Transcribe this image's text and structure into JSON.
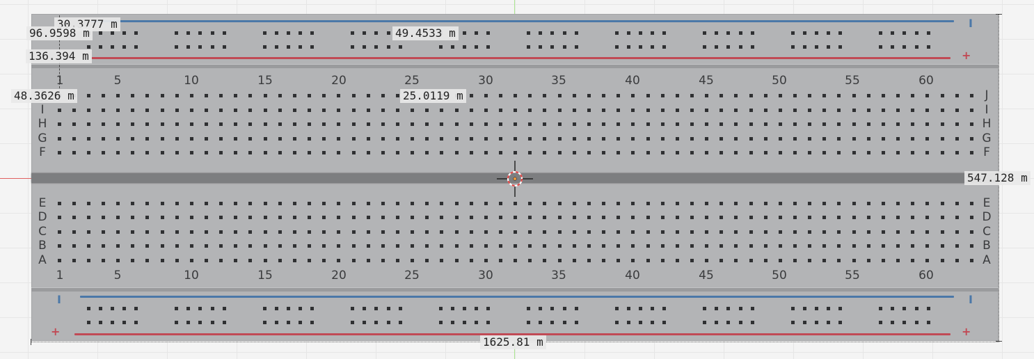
{
  "columns": {
    "top_labels": [
      "1",
      "5",
      "10",
      "15",
      "20",
      "25",
      "30",
      "35",
      "40",
      "45",
      "50",
      "55",
      "60"
    ],
    "bottom_labels": [
      "1",
      "5",
      "10",
      "15",
      "20",
      "25",
      "30",
      "35",
      "40",
      "45",
      "50",
      "55",
      "60"
    ]
  },
  "rows": {
    "upper": [
      "J",
      "I",
      "H",
      "G",
      "F"
    ],
    "lower": [
      "E",
      "D",
      "C",
      "B",
      "A"
    ]
  },
  "rails": {
    "top_minus": "I",
    "top_plus": "+",
    "bottom_minus": "I",
    "bottom_plus": "+"
  },
  "dimensions": {
    "d1": "30.3777 m",
    "d2": "96.9598 m",
    "d3": "49.4533 m",
    "d4": "136.394 m",
    "d5": "48.3626 m",
    "d6": "25.0119 m",
    "d7": "547.128 m",
    "d8": "1625.81 m"
  },
  "colors": {
    "board": "#b3b4b6",
    "rail_blue": "#4b78a8",
    "rail_red": "#c14a55",
    "hole": "#2f3032",
    "cursor_ring": "#e04848"
  },
  "icons": {
    "cursor": "3d-cursor-icon"
  }
}
